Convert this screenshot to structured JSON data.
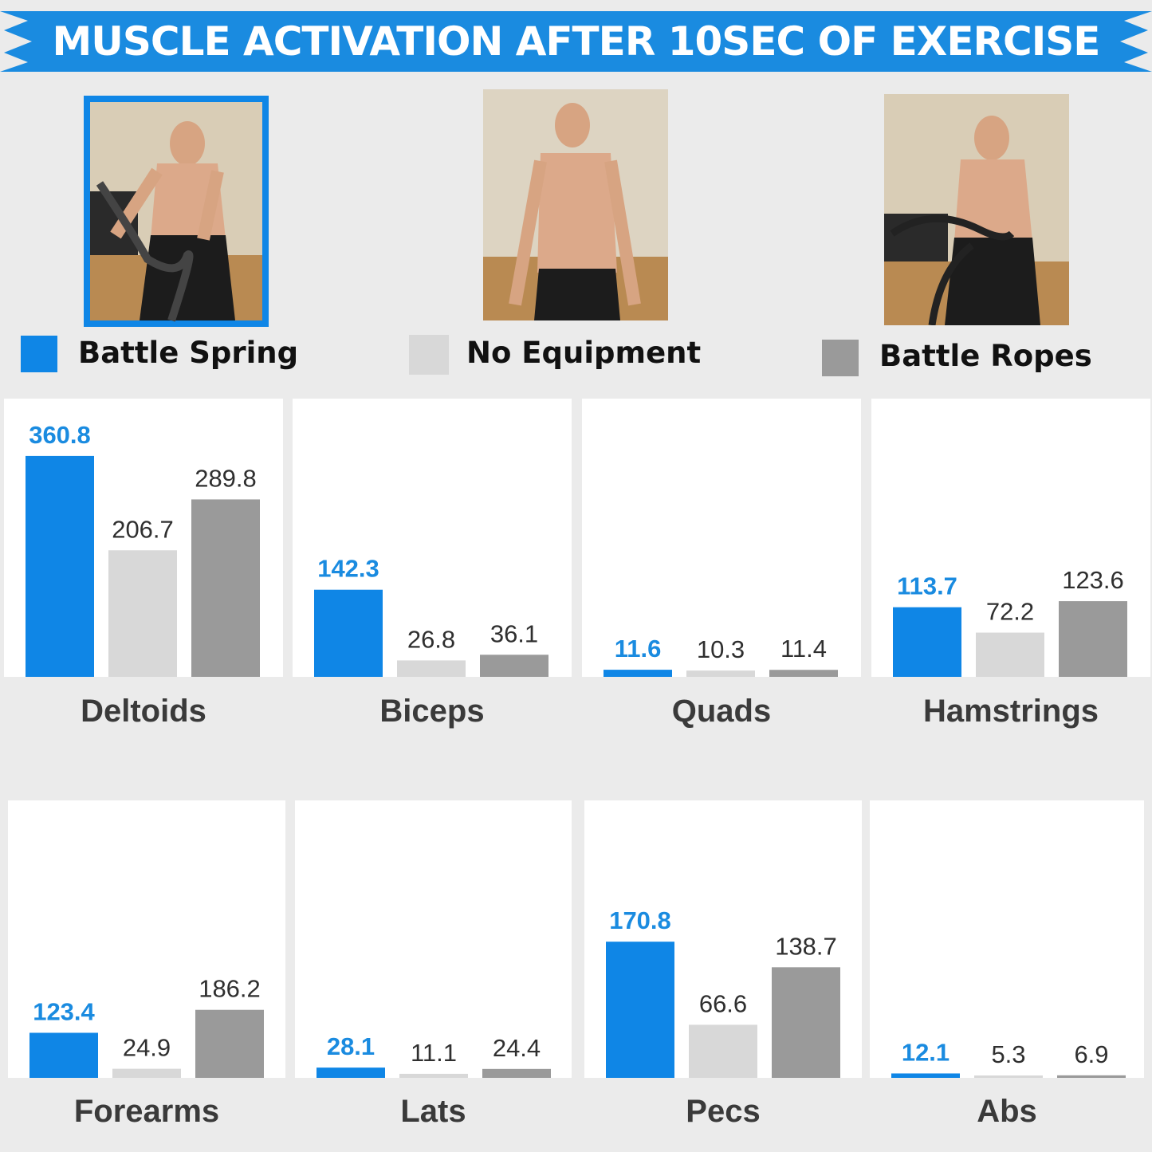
{
  "title": "MUSCLE ACTIVATION AFTER 10SEC OF EXERCISE",
  "colors": {
    "banner": "#1a8be0",
    "battle_spring": "#0f86e6",
    "no_equipment": "#d8d8d8",
    "battle_ropes": "#9a9a9a",
    "background": "#ebebeb"
  },
  "legend": [
    {
      "label": "Battle Spring",
      "color": "#0f86e6"
    },
    {
      "label": "No Equipment",
      "color": "#d8d8d8"
    },
    {
      "label": "Battle Ropes",
      "color": "#9a9a9a"
    }
  ],
  "photos": [
    {
      "subject": "man-with-battle-spring",
      "highlighted": true
    },
    {
      "subject": "man-no-equipment",
      "highlighted": false
    },
    {
      "subject": "man-with-battle-ropes",
      "highlighted": false
    }
  ],
  "chart_data": {
    "type": "bar",
    "series_names": [
      "Battle Spring",
      "No Equipment",
      "Battle Ropes"
    ],
    "panels": [
      {
        "category": "Deltoids",
        "values": [
          360.8,
          206.7,
          289.8
        ],
        "labels": [
          "360.8",
          "206.7",
          "289.8"
        ]
      },
      {
        "category": "Biceps",
        "values": [
          142.3,
          26.8,
          36.1
        ],
        "labels": [
          "142.3",
          "26.8",
          "36.1"
        ]
      },
      {
        "category": "Quads",
        "values": [
          11.6,
          10.3,
          11.4
        ],
        "labels": [
          "11.6",
          "10.3",
          "11.4"
        ]
      },
      {
        "category": "Hamstrings",
        "values": [
          113.7,
          72.2,
          123.6
        ],
        "labels": [
          "113.7",
          "72.2",
          "123.6"
        ]
      },
      {
        "category": "Forearms",
        "values": [
          123.4,
          24.9,
          186.2
        ],
        "labels": [
          "123.4",
          "24.9",
          "186.2"
        ]
      },
      {
        "category": "Lats",
        "values": [
          28.1,
          11.1,
          24.4
        ],
        "labels": [
          "28.1",
          "11.1",
          "24.4"
        ]
      },
      {
        "category": "Pecs",
        "values": [
          170.8,
          66.6,
          138.7
        ],
        "labels": [
          "170.8",
          "66.6",
          "138.7"
        ]
      },
      {
        "category": "Abs",
        "values": [
          12.1,
          5.3,
          6.9
        ],
        "labels": [
          "12.1",
          "5.3",
          "6.9"
        ]
      }
    ]
  }
}
